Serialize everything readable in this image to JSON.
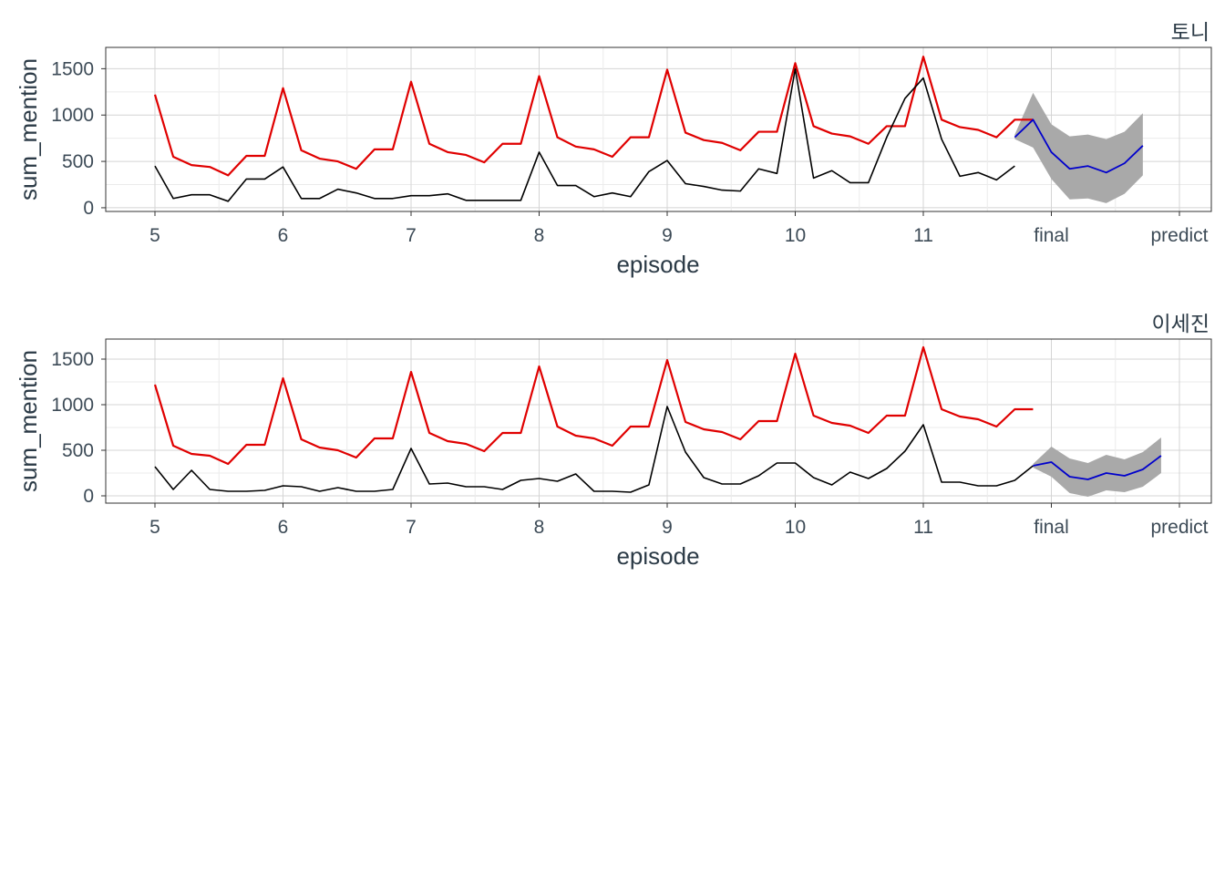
{
  "chart_data": [
    {
      "type": "line",
      "title": "토니",
      "xlabel": "episode",
      "ylabel": "sum_mention",
      "x_tick_labels": [
        "5",
        "6",
        "7",
        "8",
        "9",
        "10",
        "11",
        "final",
        "predict"
      ],
      "y_tick_labels": [
        "0",
        "500",
        "1000",
        "1500"
      ],
      "ylim": [
        -40,
        1730
      ],
      "grid": true,
      "colors": {
        "reference": "#e00000",
        "actual": "#000000",
        "forecast": "#0000cc",
        "band": "#a9a9a9"
      },
      "series": [
        {
          "values": [
            1220,
            550,
            460,
            440,
            350,
            560,
            560,
            1290,
            620,
            530,
            500,
            420,
            630,
            630,
            1360,
            690,
            600,
            570,
            490,
            690,
            690,
            1420,
            760,
            660,
            630,
            550,
            760,
            760,
            1490,
            810,
            730,
            700,
            620,
            820,
            820,
            1560,
            880,
            800,
            770,
            690,
            880,
            880,
            1630,
            950,
            870,
            840,
            760,
            950,
            950
          ]
        },
        {
          "values": [
            450,
            100,
            140,
            140,
            70,
            310,
            310,
            440,
            100,
            100,
            200,
            160,
            100,
            100,
            130,
            130,
            150,
            80,
            80,
            80,
            80,
            600,
            240,
            240,
            120,
            160,
            120,
            390,
            510,
            260,
            230,
            190,
            180,
            420,
            370,
            1500,
            320,
            400,
            270,
            270,
            760,
            1180,
            1400,
            740,
            340,
            380,
            300,
            450
          ]
        },
        {
          "values": [
            760,
            950,
            600,
            420,
            450,
            380,
            480,
            670
          ],
          "lower": [
            740,
            650,
            310,
            90,
            100,
            50,
            150,
            350
          ],
          "upper": [
            790,
            1240,
            900,
            770,
            790,
            740,
            820,
            1020
          ]
        }
      ]
    },
    {
      "type": "line",
      "title": "이세진",
      "xlabel": "episode",
      "ylabel": "sum_mention",
      "x_tick_labels": [
        "5",
        "6",
        "7",
        "8",
        "9",
        "10",
        "11",
        "final",
        "predict"
      ],
      "y_tick_labels": [
        "0",
        "500",
        "1000",
        "1500"
      ],
      "ylim": [
        -80,
        1720
      ],
      "grid": true,
      "colors": {
        "reference": "#e00000",
        "actual": "#000000",
        "forecast": "#0000cc",
        "band": "#a9a9a9"
      },
      "series": [
        {
          "values": [
            1220,
            550,
            460,
            440,
            350,
            560,
            560,
            1290,
            620,
            530,
            500,
            420,
            630,
            630,
            1360,
            690,
            600,
            570,
            490,
            690,
            690,
            1420,
            760,
            660,
            630,
            550,
            760,
            760,
            1490,
            810,
            730,
            700,
            620,
            820,
            820,
            1560,
            880,
            800,
            770,
            690,
            880,
            880,
            1630,
            950,
            870,
            840,
            760,
            950,
            950
          ]
        },
        {
          "values": [
            320,
            70,
            280,
            70,
            50,
            50,
            60,
            110,
            100,
            50,
            90,
            50,
            50,
            70,
            520,
            130,
            140,
            100,
            100,
            70,
            170,
            190,
            160,
            240,
            50,
            50,
            40,
            120,
            980,
            480,
            200,
            130,
            130,
            220,
            360,
            360,
            200,
            120,
            260,
            190,
            300,
            490,
            780,
            150,
            150,
            110,
            110,
            170,
            330
          ]
        },
        {
          "values": [
            330,
            370,
            210,
            180,
            250,
            220,
            290,
            440
          ],
          "lower": [
            310,
            210,
            30,
            -10,
            60,
            40,
            100,
            250
          ],
          "upper": [
            350,
            540,
            410,
            360,
            450,
            400,
            480,
            640
          ]
        }
      ]
    }
  ]
}
